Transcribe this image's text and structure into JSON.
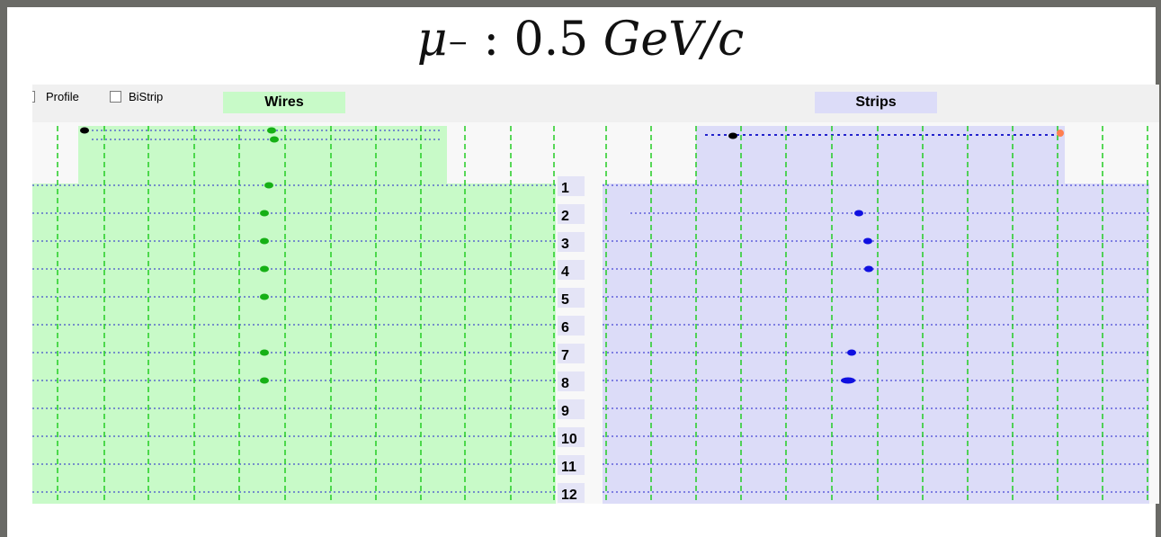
{
  "title": {
    "particle": "μ",
    "charge": "−",
    "separator": ":",
    "momentum": "0.5",
    "unit": "GeV/c"
  },
  "toolbar": {
    "profile_label": "Profile",
    "bistrip_label": "BiStrip",
    "wires_label": "Wires",
    "strips_label": "Strips"
  },
  "colors": {
    "wires_bg": "#c8fac8",
    "strips_bg": "#dcdcf8",
    "wire_hit": "#16b016",
    "strip_hit": "#1010e0",
    "grid_vertical": "#22cc22",
    "grid_horizontal": "#2222cc",
    "track_start": "#000000",
    "track_end": "#ff7f50"
  },
  "layers": [
    "1",
    "2",
    "3",
    "4",
    "5",
    "6",
    "7",
    "8",
    "9",
    "10",
    "11",
    "12"
  ],
  "wire_hits": [
    1,
    2,
    3,
    4,
    5,
    7,
    8
  ],
  "strip_hits": [
    2,
    3,
    4,
    7,
    8
  ]
}
